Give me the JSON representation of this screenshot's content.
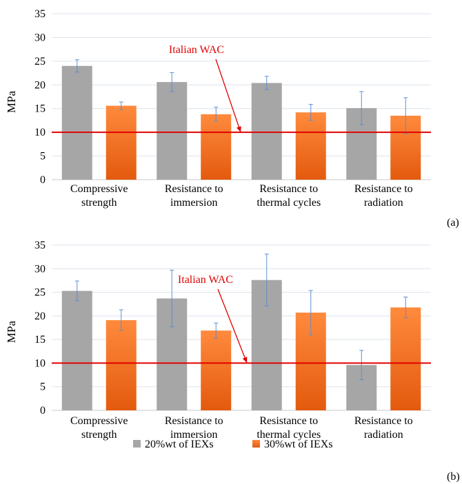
{
  "chart_data": [
    {
      "type": "bar",
      "panel_label": "(a)",
      "ylabel": "MPa",
      "ylim": [
        0,
        35
      ],
      "yticks": [
        "0",
        "5",
        "10",
        "15",
        "20",
        "25",
        "30",
        "35"
      ],
      "grid": true,
      "categories": [
        [
          "Compressive",
          "strength"
        ],
        [
          "Resistance to",
          "immersion"
        ],
        [
          "Resistance to",
          "thermal cycles"
        ],
        [
          "Resistance to",
          "radiation"
        ]
      ],
      "series": [
        {
          "name": "20%wt of IEXs",
          "color": "#a6a6a6",
          "values": [
            24.0,
            20.6,
            20.4,
            15.1
          ],
          "errors": [
            1.3,
            2.0,
            1.4,
            3.5
          ]
        },
        {
          "name": "30%wt of IEXs",
          "color": "#f07a2e",
          "values": [
            15.6,
            13.8,
            14.2,
            13.5
          ],
          "errors": [
            0.8,
            1.5,
            1.7,
            3.8
          ]
        }
      ],
      "reference_line": {
        "label": "Italian WAC",
        "value": 10,
        "color": "#e00000"
      }
    },
    {
      "type": "bar",
      "panel_label": "(b)",
      "ylabel": "MPa",
      "ylim": [
        0,
        35
      ],
      "yticks": [
        "0",
        "5",
        "10",
        "15",
        "20",
        "25",
        "30",
        "35"
      ],
      "grid": true,
      "categories": [
        [
          "Compressive",
          "strength"
        ],
        [
          "Resistance to",
          "immersion"
        ],
        [
          "Resistance to",
          "thermal cycles"
        ],
        [
          "Resistance to",
          "radiation"
        ]
      ],
      "series": [
        {
          "name": "20%wt of IEXs",
          "color": "#a6a6a6",
          "values": [
            25.3,
            23.7,
            27.6,
            9.6
          ],
          "errors": [
            2.1,
            6.0,
            5.5,
            3.1
          ]
        },
        {
          "name": "30%wt of IEXs",
          "color": "#f07a2e",
          "values": [
            19.1,
            16.9,
            20.7,
            21.8
          ],
          "errors": [
            2.2,
            1.6,
            4.7,
            2.2
          ]
        }
      ],
      "reference_line": {
        "label": "Italian WAC",
        "value": 10,
        "color": "#e00000"
      }
    }
  ],
  "legend": [
    {
      "label": "20%wt of IEXs",
      "color": "#a6a6a6"
    },
    {
      "label": "30%wt of IEXs",
      "color": "#f07a2e"
    }
  ]
}
